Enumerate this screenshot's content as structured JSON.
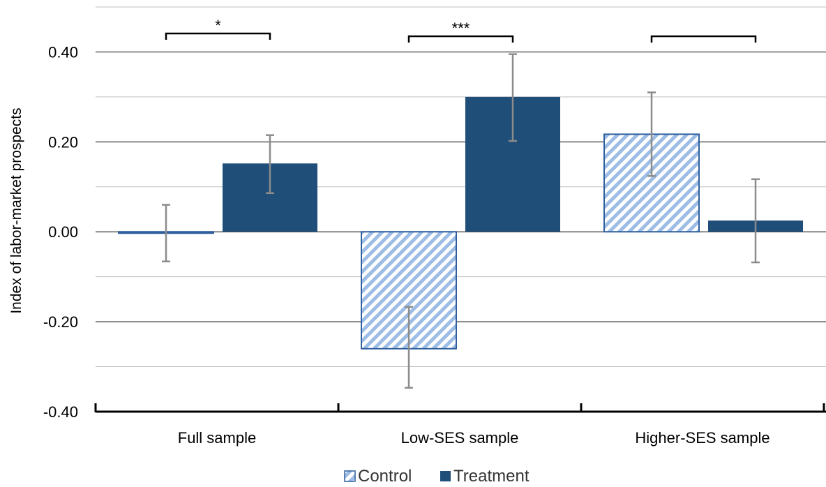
{
  "chart_data": {
    "type": "bar",
    "title": "",
    "xlabel": "",
    "ylabel": "Index of labor-market prospects",
    "ylim": [
      -0.4,
      0.5
    ],
    "y_ticks": [
      "-0.40",
      "-0.20",
      "0.00",
      "0.20",
      "0.40"
    ],
    "grid": true,
    "legend_position": "bottom",
    "categories": [
      "Full sample",
      "Low-SES sample",
      "Higher-SES sample"
    ],
    "series": [
      {
        "name": "Control",
        "pattern": "diagonal-hatch",
        "color": "#9dbde6",
        "values": [
          0.0,
          -0.26,
          0.217
        ],
        "error_low": [
          -0.066,
          -0.347,
          0.124
        ],
        "error_high": [
          0.06,
          -0.167,
          0.31
        ]
      },
      {
        "name": "Treatment",
        "pattern": "solid",
        "color": "#1f4e79",
        "values": [
          0.152,
          0.3,
          0.025
        ],
        "error_low": [
          0.086,
          0.202,
          -0.068
        ],
        "error_high": [
          0.215,
          0.395,
          0.117
        ]
      }
    ],
    "significance": [
      "*",
      "***",
      ""
    ]
  }
}
